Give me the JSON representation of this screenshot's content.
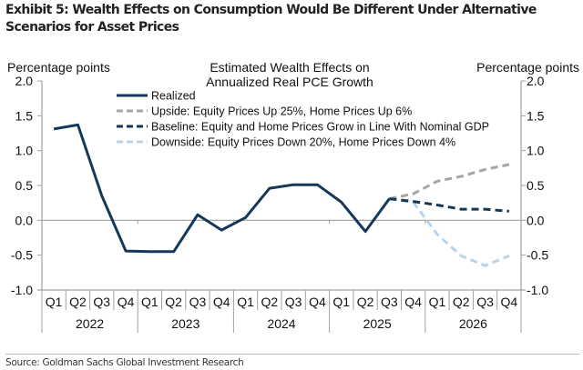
{
  "exhibit_title": "Exhibit 5: Wealth Effects on Consumption Would Be Different Under Alternative Scenarios for Asset Prices",
  "source": "Source: Goldman Sachs Global Investment Research",
  "chart_data": {
    "type": "line",
    "title": "Estimated Wealth Effects on Annualized Real PCE Growth",
    "title_lines": [
      "Estimated Wealth Effects on",
      "Annualized Real PCE Growth"
    ],
    "ylabel_left": "Percentage points",
    "ylabel_right": "Percentage points",
    "ylim": [
      -1.0,
      2.0
    ],
    "yticks": [
      2.0,
      1.5,
      1.0,
      0.5,
      0.0,
      -0.5,
      -1.0
    ],
    "ytick_labels": [
      "2.0",
      "1.5",
      "1.0",
      "0.5",
      "0.0",
      "-0.5",
      "-1.0"
    ],
    "grid": false,
    "legend_position": "top-center",
    "quarters": [
      "Q1",
      "Q2",
      "Q3",
      "Q4",
      "Q1",
      "Q2",
      "Q3",
      "Q4",
      "Q1",
      "Q2",
      "Q3",
      "Q4",
      "Q1",
      "Q2",
      "Q3",
      "Q4",
      "Q1",
      "Q2",
      "Q3",
      "Q4"
    ],
    "years": [
      "2022",
      "2023",
      "2024",
      "2025",
      "2026"
    ],
    "series": [
      {
        "name": "Realized",
        "color": "#14385a",
        "style": "solid",
        "values": [
          1.31,
          1.37,
          0.35,
          -0.44,
          -0.45,
          -0.45,
          0.08,
          -0.14,
          0.04,
          0.46,
          0.51,
          0.51,
          0.26,
          -0.16,
          0.31,
          null,
          null,
          null,
          null,
          null
        ]
      },
      {
        "name": "Upside: Equity Prices Up 25%, Home Prices Up 6%",
        "color": "#a6a6a6",
        "style": "dashed",
        "values": [
          null,
          null,
          null,
          null,
          null,
          null,
          null,
          null,
          null,
          null,
          null,
          null,
          null,
          null,
          0.31,
          0.38,
          0.56,
          0.63,
          0.73,
          0.8
        ]
      },
      {
        "name": "Baseline: Equity and Home Prices Grow in Line With Nominal GDP",
        "color": "#14385a",
        "style": "dashed",
        "values": [
          null,
          null,
          null,
          null,
          null,
          null,
          null,
          null,
          null,
          null,
          null,
          null,
          null,
          null,
          0.31,
          0.27,
          0.22,
          0.16,
          0.16,
          0.13
        ]
      },
      {
        "name": "Downside: Equity Prices Down 20%, Home Prices Down 4%",
        "color": "#b8d3ea",
        "style": "dashed",
        "values": [
          null,
          null,
          null,
          null,
          null,
          null,
          null,
          null,
          null,
          null,
          null,
          null,
          null,
          null,
          0.31,
          0.26,
          -0.2,
          -0.51,
          -0.65,
          -0.51
        ]
      }
    ]
  }
}
